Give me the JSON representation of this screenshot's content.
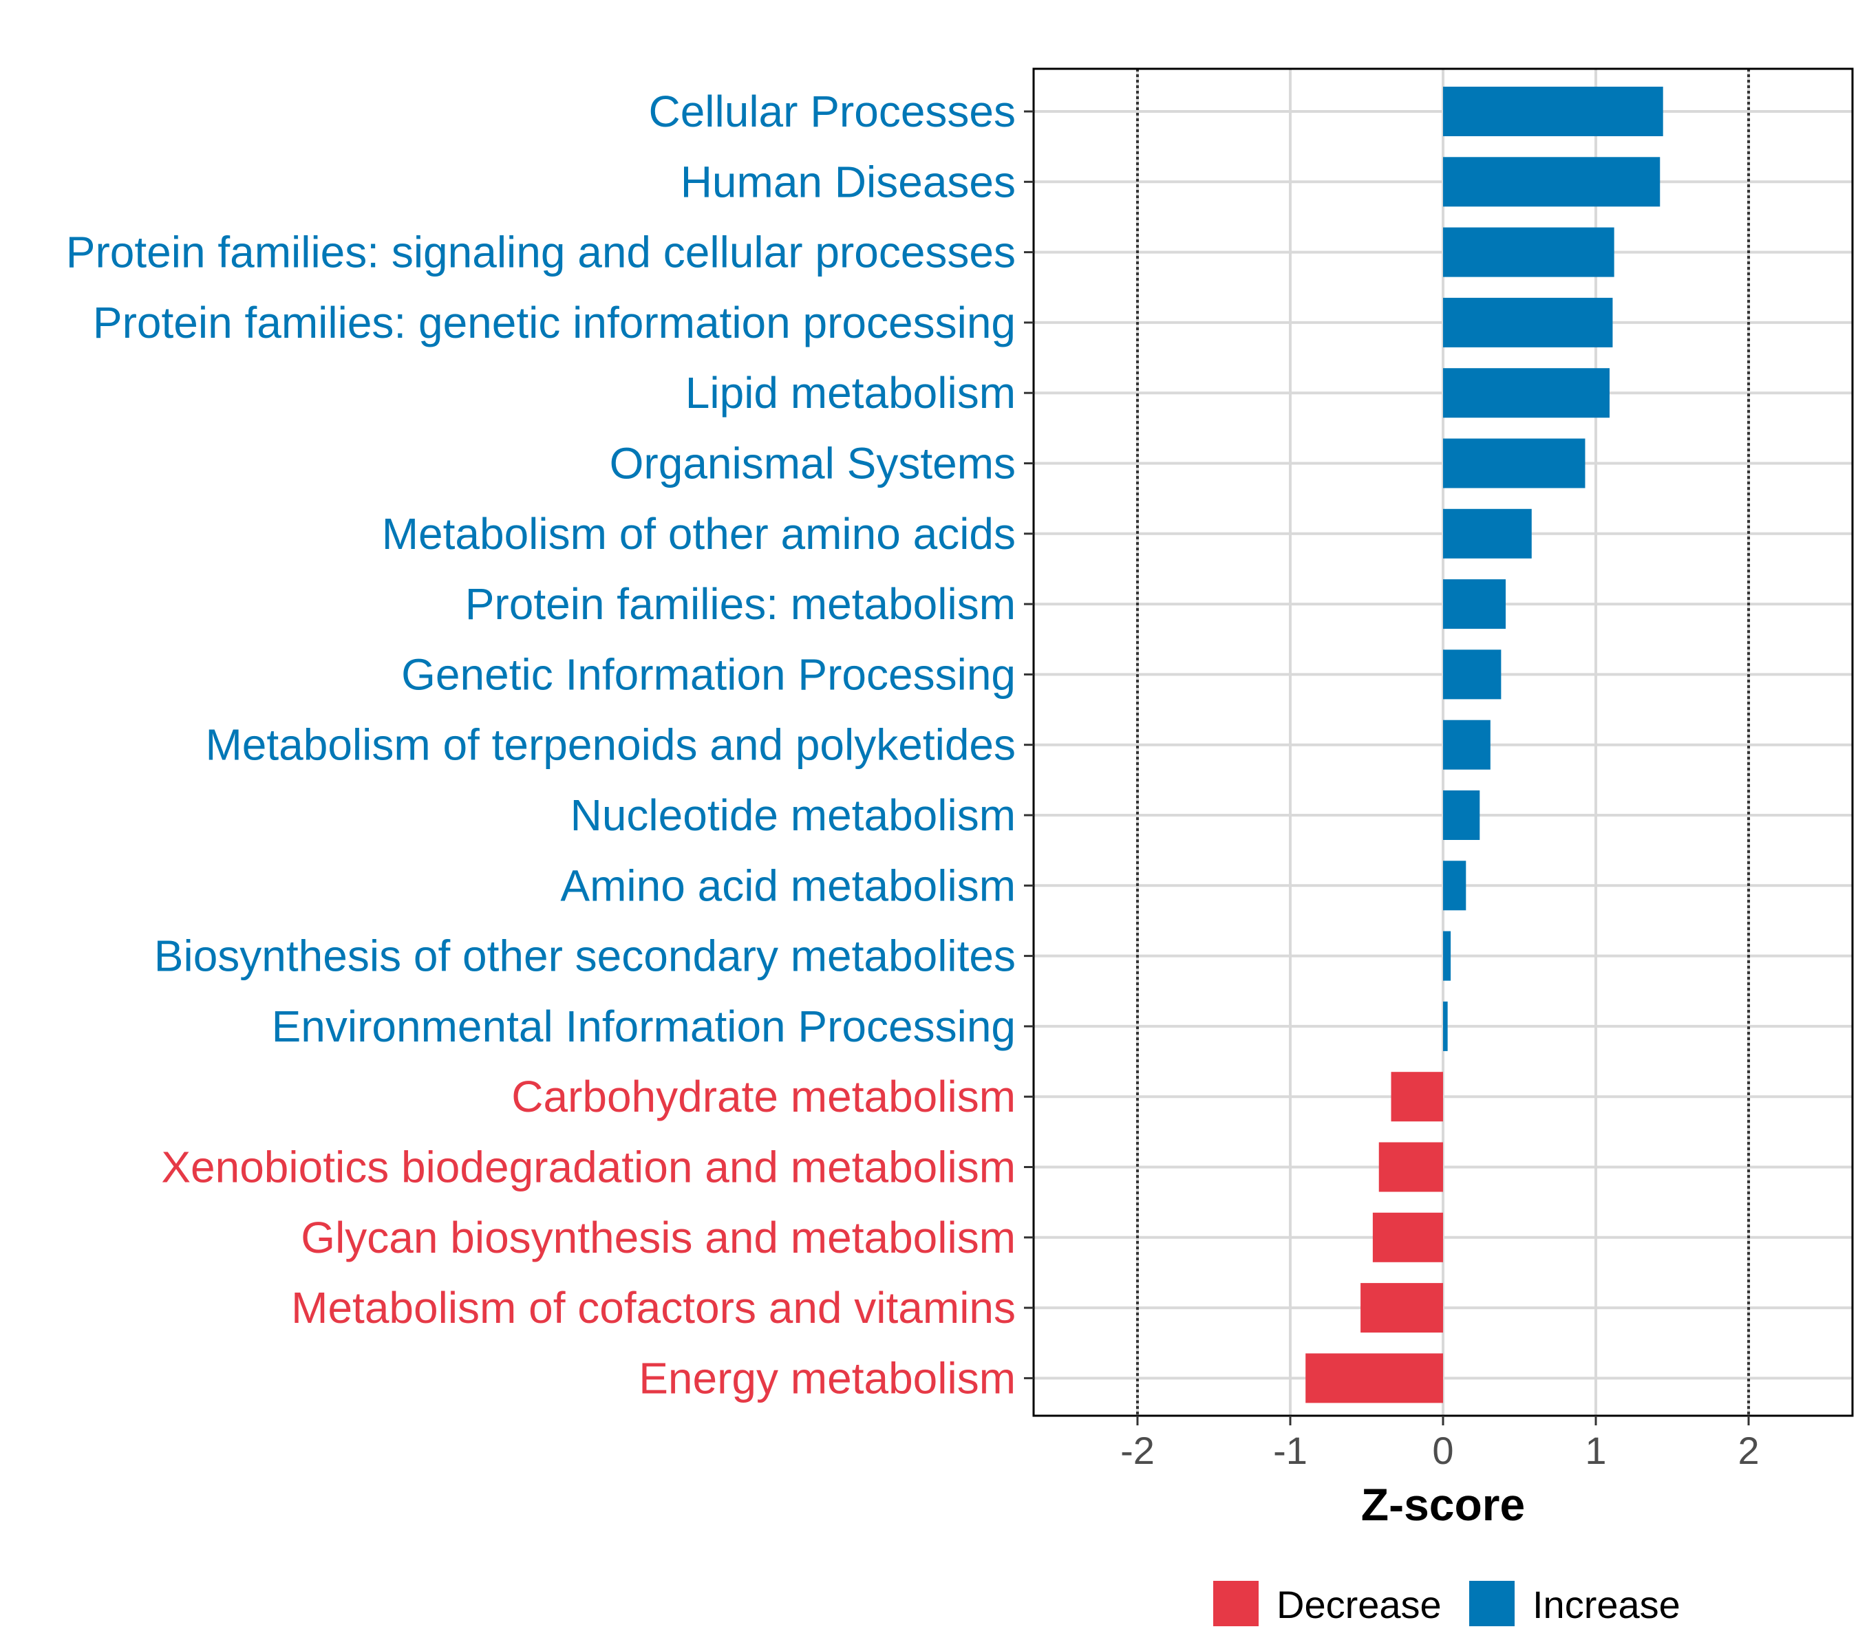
{
  "chart_data": {
    "type": "bar",
    "orientation": "horizontal",
    "categories": [
      "Cellular Processes",
      "Human Diseases",
      "Protein families: signaling and cellular processes",
      "Protein families: genetic information processing",
      "Lipid metabolism",
      "Organismal Systems",
      "Metabolism of other amino acids",
      "Protein families: metabolism",
      "Genetic Information Processing",
      "Metabolism of terpenoids and polyketides",
      "Nucleotide metabolism",
      "Amino acid metabolism",
      "Biosynthesis of other secondary metabolites",
      "Environmental Information Processing",
      "Carbohydrate metabolism",
      "Xenobiotics biodegradation and metabolism",
      "Glycan biosynthesis and metabolism",
      "Metabolism of cofactors and vitamins",
      "Energy metabolism"
    ],
    "values": [
      1.44,
      1.42,
      1.12,
      1.11,
      1.09,
      0.93,
      0.58,
      0.41,
      0.38,
      0.31,
      0.24,
      0.15,
      0.05,
      0.03,
      -0.34,
      -0.42,
      -0.46,
      -0.54,
      -0.9
    ],
    "groups": [
      "Increase",
      "Increase",
      "Increase",
      "Increase",
      "Increase",
      "Increase",
      "Increase",
      "Increase",
      "Increase",
      "Increase",
      "Increase",
      "Increase",
      "Increase",
      "Increase",
      "Decrease",
      "Decrease",
      "Decrease",
      "Decrease",
      "Decrease"
    ],
    "title": "",
    "xlabel": "Z-score",
    "ylabel": "",
    "xlim": [
      -2.68,
      2.68
    ],
    "xticks": [
      -2,
      -1,
      0,
      1,
      2
    ],
    "xtick_labels": [
      "-2",
      "-1",
      "0",
      "1",
      "2"
    ],
    "reference_lines": [
      -2,
      2
    ],
    "grid": true,
    "legend": {
      "placement": "bottom",
      "entries": [
        {
          "label": "Decrease",
          "color": "#E63946"
        },
        {
          "label": "Increase",
          "color": "#0077B6"
        }
      ]
    }
  }
}
